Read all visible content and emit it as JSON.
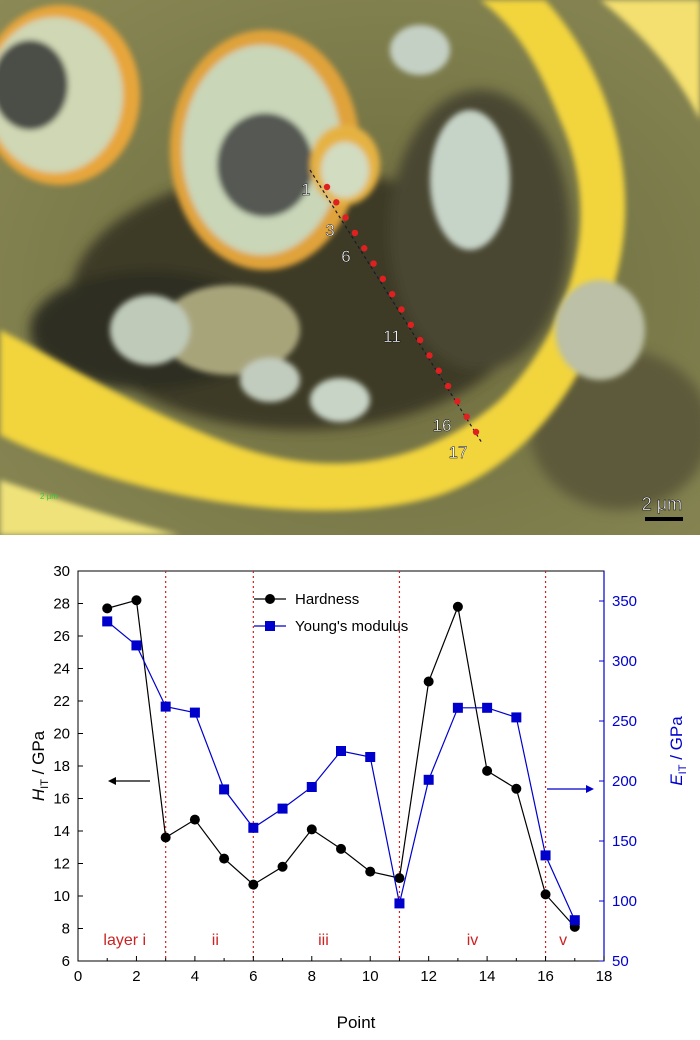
{
  "micrograph": {
    "indent_labels": [
      "1",
      "3",
      "6",
      "11",
      "16",
      "17"
    ],
    "scale_bar_label": "2 μm",
    "embedded_scale_text": "2 μm"
  },
  "chart_data": {
    "type": "line",
    "xlabel": "Point",
    "xlim": [
      0,
      18
    ],
    "x_ticks": [
      0,
      2,
      4,
      6,
      8,
      10,
      12,
      14,
      16,
      18
    ],
    "left_axis": {
      "label_main": "H",
      "label_sub": "IT",
      "label_unit": " / GPa",
      "ylim": [
        6,
        30
      ],
      "ticks": [
        6,
        8,
        10,
        12,
        14,
        16,
        18,
        20,
        22,
        24,
        26,
        28,
        30
      ]
    },
    "right_axis": {
      "label_main": "E",
      "label_sub": "IT",
      "label_unit": " / GPa",
      "ylim": [
        50,
        375
      ],
      "ticks": [
        50,
        100,
        150,
        200,
        250,
        300,
        350
      ]
    },
    "series": [
      {
        "name": "Hardness",
        "axis": "left",
        "color": "#000000",
        "marker": "circle",
        "x": [
          1,
          2,
          3,
          4,
          5,
          6,
          7,
          8,
          9,
          10,
          11,
          12,
          13,
          14,
          15,
          16,
          17
        ],
        "values": [
          27.7,
          28.2,
          13.6,
          14.7,
          12.3,
          10.7,
          11.8,
          14.1,
          12.9,
          11.5,
          11.1,
          23.2,
          27.8,
          17.7,
          16.6,
          10.1,
          8.1
        ]
      },
      {
        "name": "Young's modulus",
        "axis": "right",
        "color": "#0000cc",
        "marker": "square",
        "x": [
          1,
          2,
          3,
          4,
          5,
          6,
          7,
          8,
          9,
          10,
          11,
          12,
          13,
          14,
          15,
          16,
          17
        ],
        "values": [
          333,
          313,
          262,
          257,
          193,
          161,
          177,
          195,
          225,
          220,
          98,
          201,
          261,
          261,
          253,
          138,
          84
        ]
      }
    ],
    "layer_boundaries": [
      3,
      6,
      11,
      16
    ],
    "layer_boundary_color": "#cc2222",
    "layer_labels": [
      {
        "text": "layer i",
        "x": 1.6
      },
      {
        "text": "ii",
        "x": 4.7
      },
      {
        "text": "iii",
        "x": 8.4
      },
      {
        "text": "iv",
        "x": 13.5
      },
      {
        "text": "v",
        "x": 16.6
      }
    ],
    "legend_position": "top-center",
    "annotations": [
      "arrow toward left axis",
      "arrow toward right axis"
    ]
  }
}
